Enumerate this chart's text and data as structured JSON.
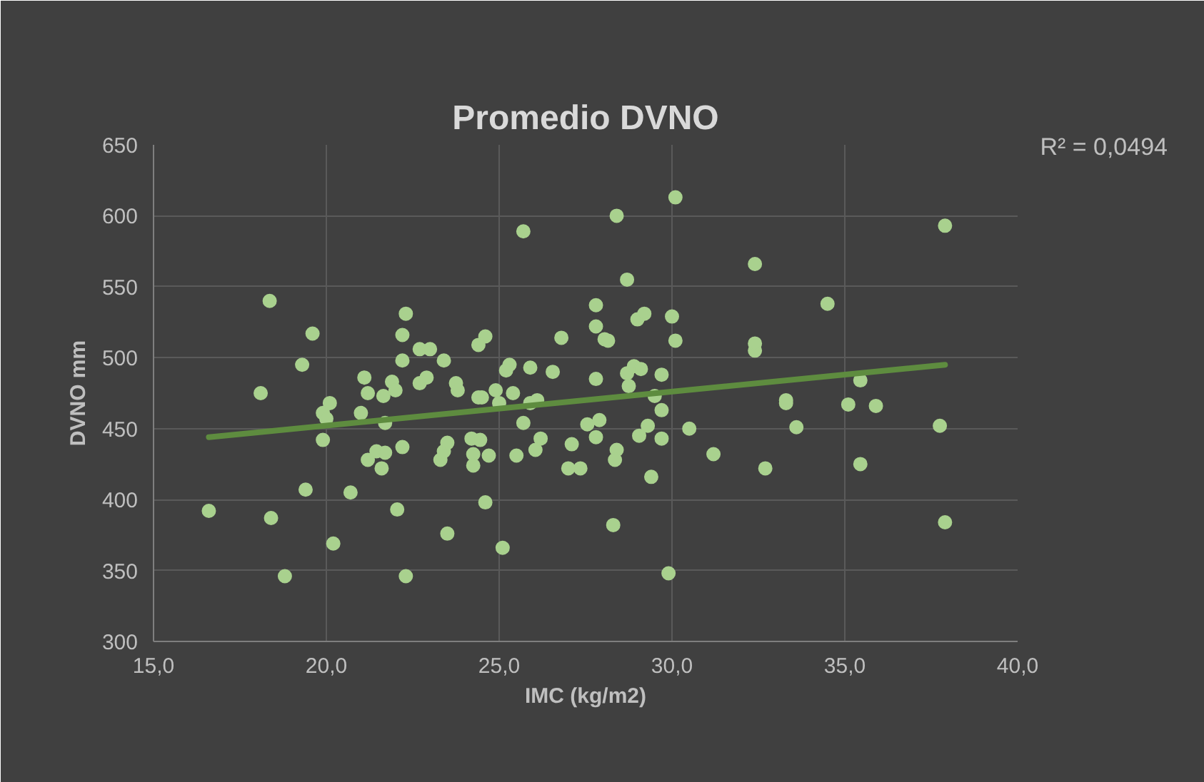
{
  "chart_data": {
    "type": "scatter",
    "title": "Promedio DVNO",
    "xlabel": "IMC (kg/m2)",
    "ylabel": "DVNO mm",
    "xlim": [
      15,
      40
    ],
    "xticks": [
      {
        "value": 15,
        "label": "15,0"
      },
      {
        "value": 20,
        "label": "20,0"
      },
      {
        "value": 25,
        "label": "25,0"
      },
      {
        "value": 30,
        "label": "30,0"
      },
      {
        "value": 35,
        "label": "35,0"
      },
      {
        "value": 40,
        "label": "40,0"
      }
    ],
    "ylim": [
      300,
      650
    ],
    "yticks": [
      300,
      350,
      400,
      450,
      500,
      550,
      600,
      650
    ],
    "grid": true,
    "annotations": [
      "R² = 0,0494"
    ],
    "series": [
      {
        "type": "scatter",
        "marker": "circle",
        "color": "#a9d18e",
        "x": [
          18.36,
          19.6,
          19.3,
          18.1,
          22.3,
          22.2,
          22.7,
          23.0,
          22.2,
          23.4,
          21.1,
          21.2,
          21.9,
          22.0,
          21.65,
          22.7,
          22.9,
          20.1,
          19.9,
          20.0,
          21.0,
          21.7,
          19.9,
          21.2,
          21.45,
          21.7,
          21.6,
          22.2,
          23.3,
          23.4,
          23.5,
          19.4,
          20.7,
          16.6,
          18.4,
          22.05,
          20.2,
          23.5,
          18.8,
          22.3,
          30.1,
          28.4,
          25.7,
          28.7,
          27.8,
          27.8,
          28.05,
          28.15,
          29.0,
          29.2,
          30.0,
          30.1,
          26.8,
          24.6,
          24.4,
          23.75,
          23.8,
          24.4,
          24.5,
          24.9,
          25.0,
          25.4,
          25.3,
          25.2,
          25.9,
          26.55,
          25.9,
          26.1,
          25.7,
          26.2,
          26.05,
          25.5,
          24.2,
          24.45,
          24.25,
          24.7,
          24.25,
          27.1,
          27.0,
          27.35,
          27.55,
          27.9,
          27.8,
          28.4,
          28.35,
          27.8,
          28.7,
          28.9,
          29.1,
          28.75,
          29.7,
          29.5,
          29.7,
          29.3,
          29.05,
          29.7,
          30.5,
          31.2,
          29.4,
          24.6,
          28.3,
          25.1,
          29.9,
          37.9,
          32.4,
          34.5,
          32.4,
          32.4,
          35.45,
          33.3,
          33.3,
          35.1,
          35.9,
          33.6,
          37.75,
          32.7,
          35.45,
          37.9
        ],
        "values": [
          540,
          517,
          495,
          475,
          531,
          516,
          506,
          506,
          498,
          498,
          486,
          475,
          483,
          477,
          473,
          482,
          486,
          468,
          461,
          457,
          461,
          454,
          442,
          428,
          434,
          433,
          422,
          437,
          428,
          434,
          440,
          407,
          405,
          392,
          387,
          393,
          369,
          376,
          346,
          346,
          613,
          600,
          589,
          555,
          537,
          522,
          513,
          512,
          527,
          531,
          529,
          512,
          514,
          515,
          509,
          482,
          477,
          472,
          472,
          477,
          468,
          475,
          495,
          491,
          493,
          490,
          468,
          470,
          454,
          443,
          435,
          431,
          443,
          442,
          432,
          431,
          424,
          439,
          422,
          422,
          453,
          456,
          444,
          435,
          428,
          485,
          489,
          494,
          492,
          480,
          488,
          473,
          463,
          452,
          445,
          443,
          450,
          432,
          416,
          398,
          382,
          366,
          348,
          593,
          566,
          538,
          505,
          510,
          484,
          470,
          468,
          467,
          466,
          451,
          452,
          422,
          425,
          384
        ]
      },
      {
        "type": "line",
        "color": "#5e8c3f",
        "x": [
          16.6,
          37.9
        ],
        "values": [
          444,
          495
        ]
      }
    ]
  }
}
